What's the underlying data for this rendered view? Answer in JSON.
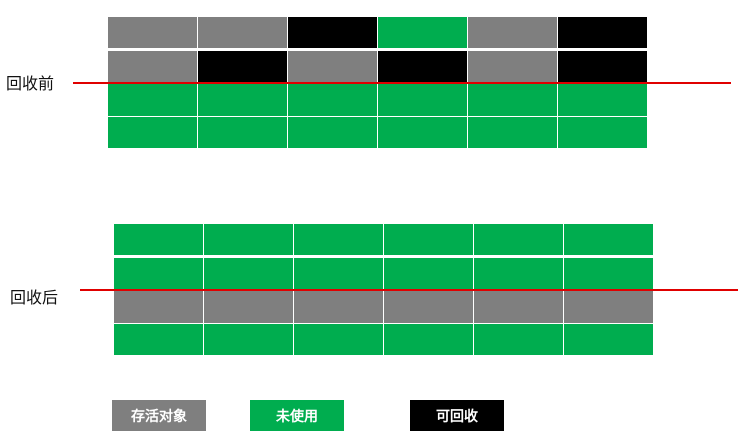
{
  "colors": {
    "live": "#7f7f7f",
    "free": "#00ad4f",
    "garbage": "#000000",
    "line": "#e00000"
  },
  "before": {
    "label": "回收前",
    "rows": [
      [
        "live",
        "live",
        "garbage",
        "free",
        "live",
        "garbage"
      ],
      [
        "live",
        "garbage",
        "live",
        "garbage",
        "live",
        "garbage"
      ],
      [
        "free",
        "free",
        "free",
        "free",
        "free",
        "free"
      ],
      [
        "free",
        "free",
        "free",
        "free",
        "free",
        "free"
      ]
    ]
  },
  "after": {
    "label": "回收后",
    "rows": [
      [
        "free",
        "free",
        "free",
        "free",
        "free",
        "free"
      ],
      [
        "free",
        "free",
        "free",
        "free",
        "free",
        "free"
      ],
      [
        "live",
        "live",
        "live",
        "live",
        "live",
        "live"
      ],
      [
        "free",
        "free",
        "free",
        "free",
        "free",
        "free"
      ]
    ]
  },
  "legend": {
    "live": "存活对象",
    "free": "未使用",
    "garbage": "可回收"
  }
}
